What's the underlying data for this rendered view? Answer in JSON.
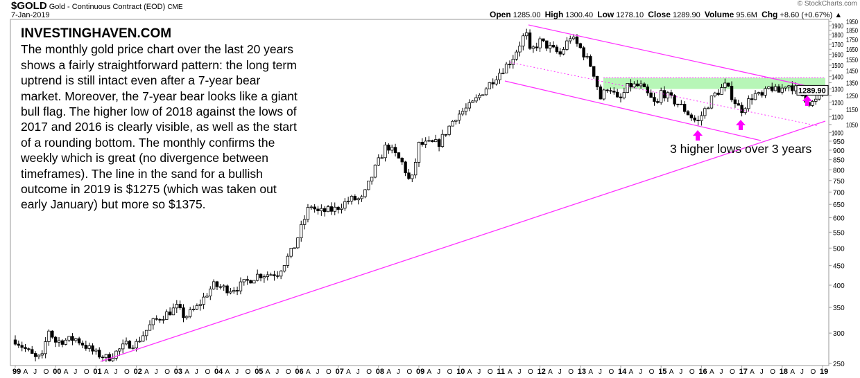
{
  "header": {
    "symbol": "$GOLD",
    "name": "Gold - Continuous Contract (EOD)",
    "exchange": "CME",
    "date": "7-Jan-2019",
    "watermark": "© StockCharts.com",
    "open_label": "Open",
    "open": "1285.00",
    "high_label": "High",
    "high": "1300.40",
    "low_label": "Low",
    "low": "1278.10",
    "close_label": "Close",
    "close": "1289.90",
    "volume_label": "Volume",
    "volume": "95.6M",
    "chg_label": "Chg",
    "chg": "+8.60 (+0.67%)"
  },
  "annotation": {
    "brand": "INVESTINGHAVEN.COM",
    "lines": [
      "The monthly gold price chart over the last 20 years",
      "shows a fairly straightforward pattern: the long term",
      "uptrend is still intact even after a 7-year bear",
      "market. Moreover, the 7-year bear looks like a giant",
      "bull flag. The higher low of 2018 against the lows of",
      "2017 and 2016 is clearly visible, as well as the start",
      "of a rounding bottom. The monthly confirms the",
      "weekly which is great (no divergence between",
      "timeframes). The line in the sand for a bullish",
      "outcome in 2019 is $1275 (which was taken out",
      "early January) but more so $1375."
    ],
    "higher_lows": "3 higher lows over 3 years"
  },
  "colors": {
    "trendline": "#ff33ff",
    "zone": "#aaf5aa",
    "up": "#ffffff",
    "down": "#000000"
  },
  "chart_data": {
    "type": "candlestick",
    "scale": "log",
    "ylim": [
      250,
      1950
    ],
    "yticks": [
      250,
      300,
      350,
      400,
      450,
      500,
      550,
      600,
      650,
      700,
      750,
      800,
      850,
      900,
      950,
      1000,
      1050,
      1100,
      1150,
      1200,
      1250,
      1300,
      1350,
      1400,
      1450,
      1500,
      1550,
      1600,
      1650,
      1700,
      1750,
      1800,
      1850,
      1900,
      1950
    ],
    "last_price_label": "1289.90",
    "last_price": 1289.9,
    "xlim": [
      1999.0,
      2019.1
    ],
    "year_labels": [
      "99",
      "00",
      "01",
      "02",
      "03",
      "04",
      "05",
      "06",
      "07",
      "08",
      "09",
      "10",
      "11",
      "12",
      "13",
      "14",
      "15",
      "16",
      "17",
      "18",
      "19"
    ],
    "month_labels": [
      "A",
      "J",
      "O"
    ],
    "approx_close_keypoints": [
      [
        1999.0,
        288
      ],
      [
        1999.5,
        258
      ],
      [
        1999.7,
        260
      ],
      [
        1999.8,
        310
      ],
      [
        2000.0,
        285
      ],
      [
        2000.5,
        290
      ],
      [
        2001.0,
        265
      ],
      [
        2001.3,
        258
      ],
      [
        2001.75,
        280
      ],
      [
        2002.0,
        282
      ],
      [
        2002.4,
        320
      ],
      [
        2003.0,
        350
      ],
      [
        2003.2,
        330
      ],
      [
        2003.5,
        350
      ],
      [
        2003.9,
        400
      ],
      [
        2004.3,
        390
      ],
      [
        2004.5,
        395
      ],
      [
        2005.0,
        425
      ],
      [
        2005.5,
        430
      ],
      [
        2005.9,
        500
      ],
      [
        2006.3,
        650
      ],
      [
        2006.5,
        620
      ],
      [
        2006.9,
        630
      ],
      [
        2007.3,
        670
      ],
      [
        2007.6,
        670
      ],
      [
        2007.9,
        800
      ],
      [
        2008.2,
        930
      ],
      [
        2008.6,
        830
      ],
      [
        2008.8,
        730
      ],
      [
        2009.0,
        930
      ],
      [
        2009.5,
        940
      ],
      [
        2009.9,
        1100
      ],
      [
        2010.3,
        1180
      ],
      [
        2010.5,
        1250
      ],
      [
        2010.9,
        1400
      ],
      [
        2011.3,
        1550
      ],
      [
        2011.65,
        1830
      ],
      [
        2011.75,
        1620
      ],
      [
        2012.0,
        1730
      ],
      [
        2012.5,
        1600
      ],
      [
        2012.75,
        1780
      ],
      [
        2013.0,
        1660
      ],
      [
        2013.3,
        1470
      ],
      [
        2013.5,
        1230
      ],
      [
        2013.7,
        1330
      ],
      [
        2013.95,
        1200
      ],
      [
        2014.2,
        1330
      ],
      [
        2014.5,
        1320
      ],
      [
        2014.9,
        1170
      ],
      [
        2015.0,
        1280
      ],
      [
        2015.5,
        1170
      ],
      [
        2015.9,
        1060
      ],
      [
        2016.0,
        1110
      ],
      [
        2016.3,
        1250
      ],
      [
        2016.6,
        1330
      ],
      [
        2016.9,
        1170
      ],
      [
        2017.0,
        1150
      ],
      [
        2017.3,
        1260
      ],
      [
        2017.5,
        1240
      ],
      [
        2017.7,
        1320
      ],
      [
        2017.9,
        1270
      ],
      [
        2018.1,
        1340
      ],
      [
        2018.3,
        1310
      ],
      [
        2018.6,
        1220
      ],
      [
        2018.7,
        1190
      ],
      [
        2018.9,
        1220
      ],
      [
        2019.0,
        1290
      ]
    ],
    "resistance_zone": [
      1300,
      1390
    ]
  }
}
